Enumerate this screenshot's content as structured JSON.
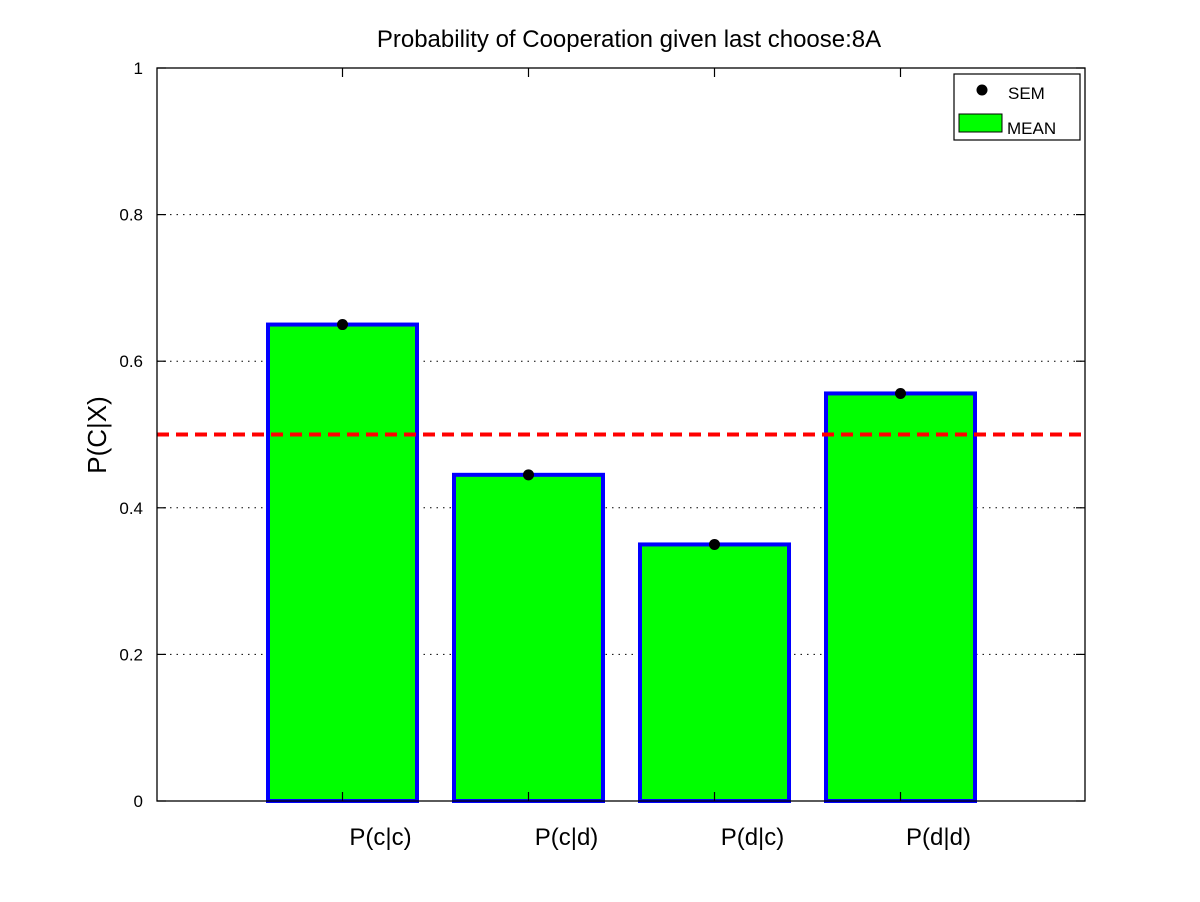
{
  "chart_data": {
    "type": "bar",
    "title": "Probability of Cooperation given last choose:8A",
    "xlabel": "",
    "ylabel": "P(C|X)",
    "categories": [
      "P(c|c)",
      "P(c|d)",
      "P(d|c)",
      "P(d|d)"
    ],
    "series": [
      {
        "name": "MEAN",
        "values": [
          0.65,
          0.445,
          0.35,
          0.556
        ],
        "sem": [
          0.003,
          0.003,
          0.003,
          0.003
        ]
      }
    ],
    "ylim": [
      0,
      1
    ],
    "yticks": [
      "0",
      "0.2",
      "0.4",
      "0.6",
      "0.8",
      "1"
    ],
    "reference_line": {
      "y": 0.5,
      "color": "#ff0000",
      "style": "dashed"
    },
    "grid": "horizontal-dotted",
    "legend": {
      "placement": "top-right",
      "entries": [
        "SEM",
        "MEAN"
      ]
    },
    "colors": {
      "bar_fill": "#00ff00",
      "bar_edge": "#0000ff",
      "sem_marker": "#000000",
      "reference_line": "#ff0000"
    }
  }
}
